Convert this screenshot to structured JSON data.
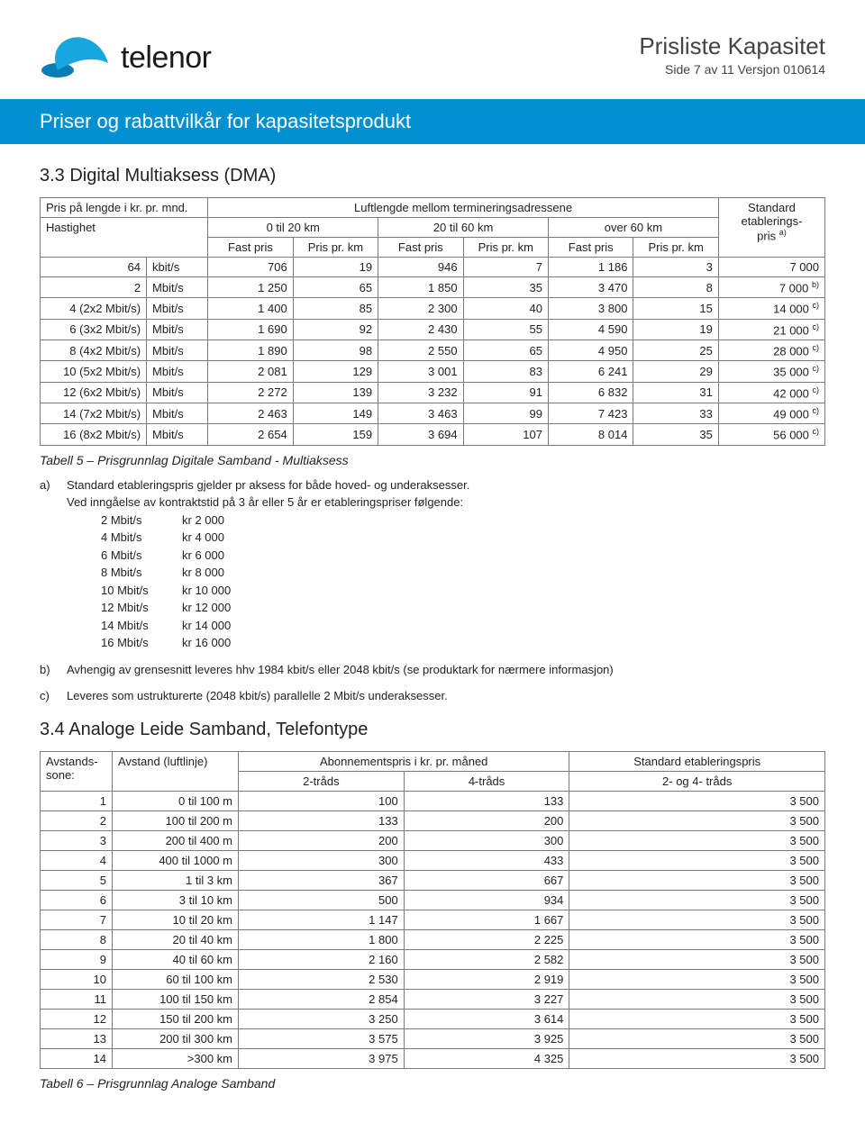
{
  "header": {
    "brand": "telenor",
    "doc_title": "Prisliste Kapasitet",
    "doc_sub": "Side 7 av 11 Versjon 010614",
    "logo_propeller_color": "#18a6df",
    "logo_shadow_color": "#0a7db8"
  },
  "banner": "Priser og rabattvilkår for kapasitetsprodukt",
  "section33": {
    "title": "3.3   Digital Multiaksess (DMA)",
    "left_label": "Pris på lengde i kr. pr. mnd.",
    "mid_label": "Luftlengde mellom termineringsadressene",
    "right_label": "Standard etablerings-",
    "hastighet": "Hastighet",
    "pris_a": "pris ",
    "a_sup": "a)",
    "ranges": [
      "0 til 20 km",
      "20 til 60 km",
      "over 60 km"
    ],
    "fast": "Fast pris",
    "priskm": "Pris pr. km",
    "rows": [
      {
        "lab": "64",
        "unit": "kbit/s",
        "v": [
          "706",
          "19",
          "946",
          "7",
          "1 186",
          "3"
        ],
        "std": "7 000",
        "sup": ""
      },
      {
        "lab": "2",
        "unit": "Mbit/s",
        "v": [
          "1 250",
          "65",
          "1 850",
          "35",
          "3 470",
          "8"
        ],
        "std": "7 000",
        "sup": "b)"
      },
      {
        "lab": "4 (2x2 Mbit/s)",
        "unit": "Mbit/s",
        "v": [
          "1 400",
          "85",
          "2 300",
          "40",
          "3 800",
          "15"
        ],
        "std": "14 000",
        "sup": "c)"
      },
      {
        "lab": "6 (3x2 Mbit/s)",
        "unit": "Mbit/s",
        "v": [
          "1 690",
          "92",
          "2 430",
          "55",
          "4 590",
          "19"
        ],
        "std": "21 000",
        "sup": "c)"
      },
      {
        "lab": "8 (4x2 Mbit/s)",
        "unit": "Mbit/s",
        "v": [
          "1 890",
          "98",
          "2 550",
          "65",
          "4 950",
          "25"
        ],
        "std": "28 000",
        "sup": "c)"
      },
      {
        "lab": "10 (5x2 Mbit/s)",
        "unit": "Mbit/s",
        "v": [
          "2 081",
          "129",
          "3 001",
          "83",
          "6 241",
          "29"
        ],
        "std": "35 000",
        "sup": "c)"
      },
      {
        "lab": "12 (6x2 Mbit/s)",
        "unit": "Mbit/s",
        "v": [
          "2 272",
          "139",
          "3 232",
          "91",
          "6 832",
          "31"
        ],
        "std": "42 000",
        "sup": "c)"
      },
      {
        "lab": "14 (7x2 Mbit/s)",
        "unit": "Mbit/s",
        "v": [
          "2 463",
          "149",
          "3 463",
          "99",
          "7 423",
          "33"
        ],
        "std": "49 000",
        "sup": "c)"
      },
      {
        "lab": "16 (8x2 Mbit/s)",
        "unit": "Mbit/s",
        "v": [
          "2 654",
          "159",
          "3 694",
          "107",
          "8 014",
          "35"
        ],
        "std": "56 000",
        "sup": "c)"
      }
    ],
    "caption": "Tabell 5 – Prisgrunnlag Digitale Samband - Multiaksess",
    "note_a_1": "Standard etableringspris gjelder pr aksess for både hoved- og underaksesser.",
    "note_a_2": "Ved inngåelse av kontraktstid på 3 år eller 5 år er etableringspriser følgende:",
    "kr_rows": [
      {
        "a": "2 Mbit/s",
        "b": "kr  2 000"
      },
      {
        "a": "4 Mbit/s",
        "b": "kr  4 000"
      },
      {
        "a": "6 Mbit/s",
        "b": "kr  6 000"
      },
      {
        "a": "8 Mbit/s",
        "b": "kr  8 000"
      },
      {
        "a": "10 Mbit/s",
        "b": "kr 10 000"
      },
      {
        "a": "12 Mbit/s",
        "b": "kr 12 000"
      },
      {
        "a": "14 Mbit/s",
        "b": "kr 14 000"
      },
      {
        "a": "16 Mbit/s",
        "b": "kr 16 000"
      }
    ],
    "note_b": "Avhengig av grensesnitt leveres hhv 1984 kbit/s eller 2048 kbit/s (se produktark for nærmere informasjon)",
    "note_c": "Leveres som ustrukturerte (2048 kbit/s) parallelle 2 Mbit/s underaksesser."
  },
  "section34": {
    "title": "3.4   Analoge Leide Samband, Telefontype",
    "heads": {
      "zone": "Avstands-sone:",
      "dist": "Avstand (luftlinje)",
      "abon": "Abonnementspris i kr. pr. måned",
      "std": "Standard etableringspris",
      "c2": "2-tråds",
      "c4": "4-tråds",
      "c24": "2- og 4- tråds"
    },
    "rows": [
      {
        "z": "1",
        "d": "0 til 100 m",
        "a": "100",
        "b": "133",
        "c": "3 500"
      },
      {
        "z": "2",
        "d": "100 til 200 m",
        "a": "133",
        "b": "200",
        "c": "3 500"
      },
      {
        "z": "3",
        "d": "200 til 400 m",
        "a": "200",
        "b": "300",
        "c": "3 500"
      },
      {
        "z": "4",
        "d": "400 til 1000 m",
        "a": "300",
        "b": "433",
        "c": "3 500"
      },
      {
        "z": "5",
        "d": "1 til 3 km",
        "a": "367",
        "b": "667",
        "c": "3 500"
      },
      {
        "z": "6",
        "d": "3 til 10 km",
        "a": "500",
        "b": "934",
        "c": "3 500"
      },
      {
        "z": "7",
        "d": "10 til 20 km",
        "a": "1 147",
        "b": "1 667",
        "c": "3 500"
      },
      {
        "z": "8",
        "d": "20 til 40 km",
        "a": "1 800",
        "b": "2 225",
        "c": "3 500"
      },
      {
        "z": "9",
        "d": "40 til 60 km",
        "a": "2 160",
        "b": "2 582",
        "c": "3 500"
      },
      {
        "z": "10",
        "d": "60 til 100 km",
        "a": "2 530",
        "b": "2 919",
        "c": "3 500"
      },
      {
        "z": "11",
        "d": "100 til 150 km",
        "a": "2 854",
        "b": "3 227",
        "c": "3 500"
      },
      {
        "z": "12",
        "d": "150 til 200 km",
        "a": "3 250",
        "b": "3 614",
        "c": "3 500"
      },
      {
        "z": "13",
        "d": "200 til 300 km",
        "a": "3 575",
        "b": "3 925",
        "c": "3 500"
      },
      {
        "z": "14",
        "d": ">300 km",
        "a": "3 975",
        "b": "4 325",
        "c": "3 500"
      }
    ],
    "caption": "Tabell 6 – Prisgrunnlag Analoge Samband"
  },
  "colors": {
    "banner_bg": "#0190d2",
    "border": "#7a7a7a"
  }
}
